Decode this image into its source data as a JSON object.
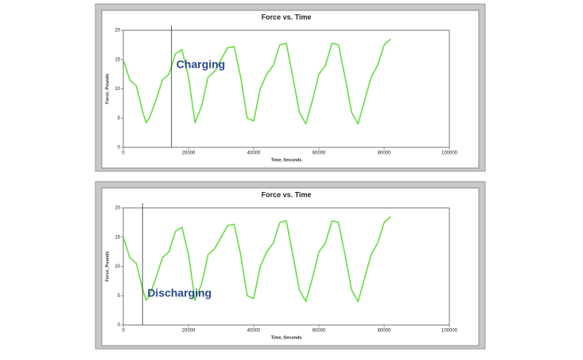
{
  "chart_data": [
    {
      "type": "line",
      "title": "Force vs. Time",
      "x_label": "Time, Seconds",
      "y_label": "Force, Pounds",
      "annotation": "Charging",
      "cursor_x": 14800,
      "x": [
        0,
        2000,
        4000,
        6000,
        7000,
        8000,
        10000,
        12000,
        14000,
        16000,
        18000,
        20000,
        22000,
        24000,
        26000,
        28000,
        30000,
        32000,
        34000,
        36000,
        38000,
        40000,
        42000,
        44000,
        46000,
        48000,
        50000,
        52000,
        54000,
        56000,
        58000,
        60000,
        62000,
        64000,
        66000,
        68000,
        70000,
        72000,
        74000,
        76000,
        78000,
        80000,
        82000
      ],
      "values": [
        15,
        11.5,
        10.5,
        6,
        4.2,
        5,
        8,
        11.5,
        12.5,
        16,
        16.7,
        12,
        4.2,
        7,
        12,
        13,
        15,
        17,
        17.2,
        12,
        5,
        4.5,
        10,
        12.5,
        14,
        17.5,
        17.8,
        12,
        6,
        4,
        8,
        12.5,
        14,
        17.8,
        17.5,
        12,
        6,
        4,
        8,
        12,
        14,
        17.5,
        18.5
      ],
      "color": "#66dd44",
      "xlim": [
        0,
        100000
      ],
      "xticks": [
        0,
        20000,
        40000,
        60000,
        80000,
        100000
      ],
      "ylim": [
        0,
        20
      ],
      "yticks": [
        0,
        5,
        10,
        15,
        20
      ]
    },
    {
      "type": "line",
      "title": "Force vs. Time",
      "x_label": "Time, Seconds",
      "y_label": "Force, Pounds",
      "annotation": "Discharging",
      "cursor_x": 5900,
      "x": [
        0,
        2000,
        4000,
        6000,
        7000,
        8000,
        10000,
        12000,
        14000,
        16000,
        18000,
        20000,
        22000,
        24000,
        26000,
        28000,
        30000,
        32000,
        34000,
        36000,
        38000,
        40000,
        42000,
        44000,
        46000,
        48000,
        50000,
        52000,
        54000,
        56000,
        58000,
        60000,
        62000,
        64000,
        66000,
        68000,
        70000,
        72000,
        74000,
        76000,
        78000,
        80000,
        82000
      ],
      "values": [
        15,
        11.5,
        10.5,
        6,
        4.2,
        5,
        8,
        11.5,
        12.5,
        16,
        16.7,
        12,
        4.2,
        7,
        12,
        13,
        15,
        17,
        17.2,
        12,
        5,
        4.5,
        10,
        12.5,
        14,
        17.5,
        17.8,
        12,
        6,
        4,
        8,
        12.5,
        14,
        17.8,
        17.5,
        12,
        6,
        4,
        8,
        12,
        14,
        17.5,
        18.5
      ],
      "color": "#66dd44",
      "xlim": [
        0,
        100000
      ],
      "xticks": [
        0,
        20000,
        40000,
        60000,
        80000,
        100000
      ],
      "ylim": [
        0,
        20
      ],
      "yticks": [
        0,
        5,
        10,
        15,
        20
      ]
    }
  ]
}
